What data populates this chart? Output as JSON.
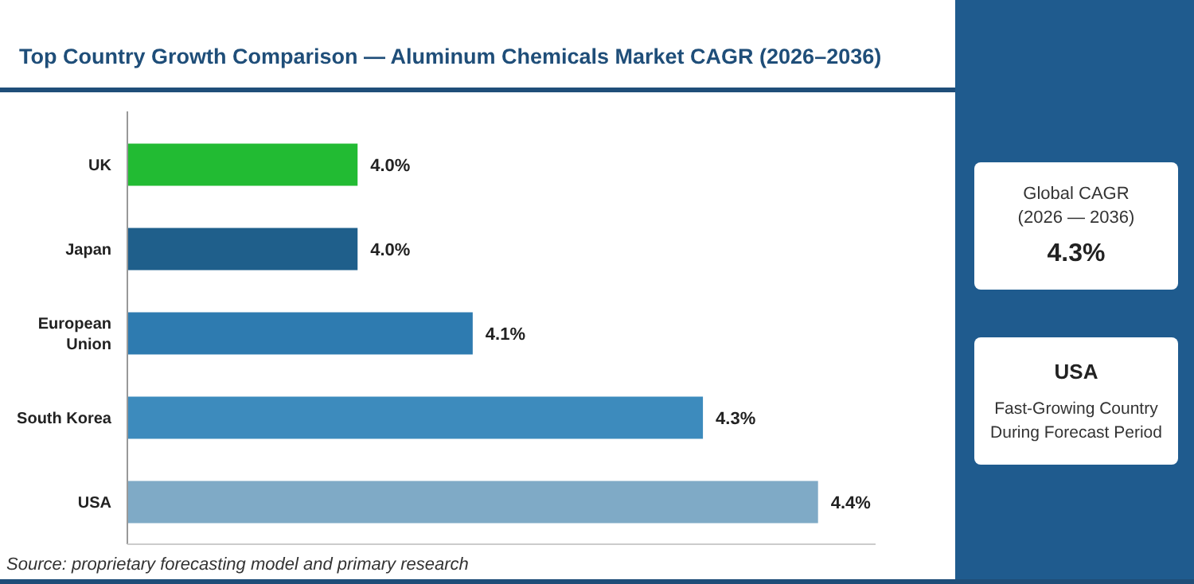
{
  "chart_data": {
    "type": "bar",
    "orientation": "horizontal",
    "title": "Top Country Growth Comparison — Aluminum Chemicals Market CAGR (2026–2036)",
    "categories": [
      "UK",
      "Japan",
      "European Union",
      "South Korea",
      "USA"
    ],
    "values": [
      4.0,
      4.0,
      4.1,
      4.3,
      4.4
    ],
    "colors": [
      "#22bb33",
      "#1f5f8b",
      "#2e7bb0",
      "#3d8bbd",
      "#7faac6"
    ],
    "value_labels": [
      "4.0%",
      "4.0%",
      "4.1%",
      "4.3%",
      "4.4%"
    ],
    "xlim": [
      3.8,
      4.45
    ],
    "tick_labels": "y",
    "grid": false,
    "annotations": [
      "Source: proprietary forecasting model and primary research",
      "Global CAGR",
      "(2026 — 2036)",
      "4.3%",
      "USA",
      "Fast-Growing Country",
      "During Forecast Period"
    ]
  }
}
